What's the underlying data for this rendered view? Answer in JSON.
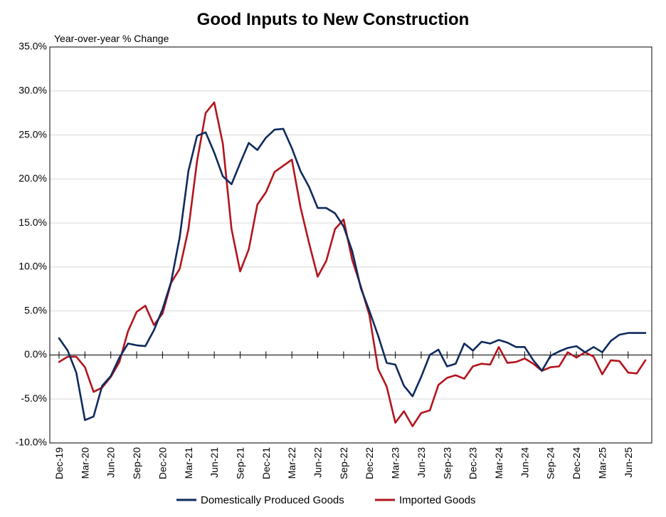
{
  "chart_data": {
    "type": "line",
    "title": "Good Inputs to New Construction",
    "ylabel": "Year-over-year % Change",
    "xlabel": "",
    "ylim": [
      -10,
      35
    ],
    "y_ticks": [
      "35.0%",
      "30.0%",
      "25.0%",
      "20.0%",
      "15.0%",
      "10.0%",
      "5.0%",
      "0.0%",
      "-5.0%",
      "-10.0%"
    ],
    "y_tick_values": [
      35,
      30,
      25,
      20,
      15,
      10,
      5,
      0,
      -5,
      -10
    ],
    "x_tick_labels": [
      "Dec-19",
      "Mar-20",
      "Jun-20",
      "Sep-20",
      "Dec-20",
      "Mar-21",
      "Jun-21",
      "Sep-21",
      "Dec-21",
      "Mar-22",
      "Jun-22",
      "Sep-22",
      "Dec-22",
      "Mar-23",
      "Jun-23",
      "Sep-23",
      "Dec-23",
      "Mar-24",
      "Jun-24",
      "Sep-24",
      "Dec-24",
      "Mar-25",
      "Jun-25"
    ],
    "grid": true,
    "legend_position": "bottom",
    "x": [
      "Dec-19",
      "Jan-20",
      "Feb-20",
      "Mar-20",
      "Apr-20",
      "May-20",
      "Jun-20",
      "Jul-20",
      "Aug-20",
      "Sep-20",
      "Oct-20",
      "Nov-20",
      "Dec-20",
      "Jan-21",
      "Feb-21",
      "Mar-21",
      "Apr-21",
      "May-21",
      "Jun-21",
      "Jul-21",
      "Aug-21",
      "Sep-21",
      "Oct-21",
      "Nov-21",
      "Dec-21",
      "Jan-22",
      "Feb-22",
      "Mar-22",
      "Apr-22",
      "May-22",
      "Jun-22",
      "Jul-22",
      "Aug-22",
      "Sep-22",
      "Oct-22",
      "Nov-22",
      "Dec-22",
      "Jan-23",
      "Feb-23",
      "Mar-23",
      "Apr-23",
      "May-23",
      "Jun-23",
      "Jul-23",
      "Aug-23",
      "Sep-23",
      "Oct-23",
      "Nov-23",
      "Dec-23",
      "Jan-24",
      "Feb-24",
      "Mar-24",
      "Apr-24",
      "May-24",
      "Jun-24",
      "Jul-24",
      "Aug-24",
      "Sep-24",
      "Oct-24",
      "Nov-24",
      "Dec-24",
      "Jan-25",
      "Feb-25",
      "Mar-25",
      "Apr-25",
      "May-25",
      "Jun-25",
      "Jul-25",
      "Aug-25"
    ],
    "series": [
      {
        "name": "Domestically Produced Goods",
        "color": "#0f2a5e",
        "values": [
          1.9,
          0.5,
          -2.0,
          -7.4,
          -7.0,
          -3.5,
          -2.4,
          -0.3,
          1.3,
          1.1,
          1.0,
          2.8,
          5.2,
          8.3,
          13.4,
          20.9,
          24.9,
          25.3,
          23.0,
          20.3,
          19.4,
          21.8,
          24.1,
          23.3,
          24.7,
          25.6,
          25.7,
          23.5,
          20.9,
          19.1,
          16.7,
          16.7,
          16.1,
          14.6,
          11.8,
          7.6,
          5.0,
          2.2,
          -0.9,
          -1.1,
          -3.5,
          -4.7,
          -2.5,
          0.0,
          0.6,
          -1.3,
          -1.0,
          1.3,
          0.5,
          1.5,
          1.3,
          1.7,
          1.4,
          0.9,
          0.9,
          -0.6,
          -1.8,
          -0.1,
          0.4,
          0.8,
          1.0,
          0.3,
          0.9,
          0.3,
          1.6,
          2.3,
          2.5,
          2.5,
          2.5
        ]
      },
      {
        "name": "Imported Goods",
        "color": "#b3141d",
        "values": [
          -0.8,
          -0.2,
          -0.2,
          -1.4,
          -4.2,
          -3.7,
          -2.5,
          -0.8,
          2.7,
          4.9,
          5.6,
          3.4,
          4.7,
          8.2,
          9.8,
          14.3,
          22.0,
          27.5,
          28.7,
          24.0,
          14.3,
          9.5,
          12.0,
          17.1,
          18.5,
          20.8,
          21.5,
          22.2,
          16.8,
          12.7,
          8.9,
          10.7,
          14.3,
          15.4,
          10.8,
          7.8,
          4.5,
          -1.6,
          -3.6,
          -7.7,
          -6.4,
          -8.1,
          -6.6,
          -6.3,
          -3.4,
          -2.6,
          -2.3,
          -2.7,
          -1.3,
          -1.0,
          -1.1,
          0.9,
          -0.9,
          -0.8,
          -0.4,
          -1.0,
          -1.8,
          -1.4,
          -1.3,
          0.3,
          -0.3,
          0.3,
          -0.2,
          -2.2,
          -0.6,
          -0.7,
          -2.0,
          -2.1,
          -0.6
        ]
      }
    ]
  }
}
